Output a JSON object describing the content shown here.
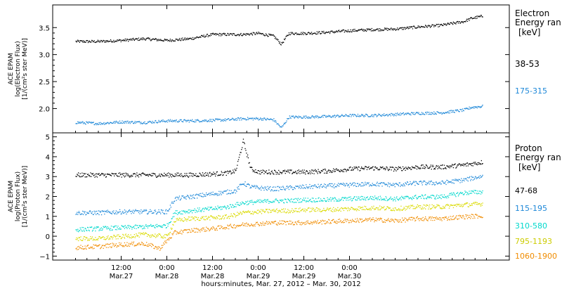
{
  "chart_data": [
    {
      "type": "scatter",
      "panel": "electron",
      "ylabel_lines": [
        "ACE EPAM",
        "log(Electron Flux)",
        "[1/(cm²s ster MeV)]"
      ],
      "ylim": [
        1.55,
        3.92
      ],
      "yticks": [
        2.0,
        2.5,
        3.0,
        3.5
      ],
      "ytick_labels": [
        "2.0",
        "2.5",
        "3.0",
        "3.5"
      ],
      "legend_title": "Electron",
      "legend_subtitle": "Energy ran",
      "legend_units": "[keV]",
      "series": [
        {
          "name": "38-53",
          "color": "#000000",
          "x": [
            0,
            6,
            12,
            18,
            24,
            30,
            36,
            40,
            44,
            48,
            52,
            54,
            56,
            60,
            66,
            72,
            78,
            84,
            90,
            96,
            102,
            104,
            107
          ],
          "y": [
            3.25,
            3.25,
            3.27,
            3.3,
            3.27,
            3.3,
            3.38,
            3.38,
            3.38,
            3.4,
            3.35,
            3.2,
            3.4,
            3.4,
            3.42,
            3.45,
            3.47,
            3.48,
            3.52,
            3.55,
            3.62,
            3.68,
            3.72
          ]
        },
        {
          "name": "175-315",
          "color": "#1e88d8",
          "x": [
            0,
            6,
            12,
            18,
            24,
            30,
            36,
            40,
            44,
            48,
            52,
            54,
            56,
            60,
            66,
            72,
            78,
            84,
            90,
            96,
            102,
            104,
            107
          ],
          "y": [
            1.75,
            1.73,
            1.76,
            1.75,
            1.78,
            1.78,
            1.79,
            1.8,
            1.82,
            1.82,
            1.8,
            1.65,
            1.85,
            1.85,
            1.86,
            1.88,
            1.88,
            1.9,
            1.92,
            1.93,
            1.98,
            2.03,
            2.05
          ]
        }
      ]
    },
    {
      "type": "scatter",
      "panel": "proton",
      "ylabel_lines": [
        "ACE EPAM",
        "log(Proton Flux)",
        "[1/(cm²s ster MeV)]"
      ],
      "ylim": [
        -1.2,
        5.2
      ],
      "yticks": [
        -1,
        0,
        1,
        2,
        3,
        4,
        5
      ],
      "ytick_labels": [
        "−1",
        "0",
        "1",
        "2",
        "3",
        "4",
        "5"
      ],
      "legend_title": "Proton",
      "legend_subtitle": "Energy ran",
      "legend_units": "[keV]",
      "series": [
        {
          "name": "47-68",
          "color": "#000000",
          "x": [
            0,
            6,
            12,
            18,
            24,
            30,
            36,
            40,
            42,
            44,
            46,
            48,
            52,
            56,
            60,
            66,
            72,
            78,
            84,
            90,
            96,
            102,
            107
          ],
          "y": [
            3.1,
            3.1,
            3.1,
            3.1,
            3.1,
            3.1,
            3.15,
            3.2,
            3.3,
            4.8,
            3.4,
            3.25,
            3.25,
            3.25,
            3.25,
            3.3,
            3.4,
            3.45,
            3.4,
            3.5,
            3.5,
            3.6,
            3.75
          ]
        },
        {
          "name": "115-195",
          "color": "#1e88d8",
          "x": [
            0,
            6,
            12,
            18,
            24,
            26,
            30,
            36,
            40,
            42,
            44,
            46,
            48,
            52,
            56,
            60,
            66,
            72,
            78,
            84,
            90,
            96,
            102,
            107
          ],
          "y": [
            1.2,
            1.2,
            1.25,
            1.25,
            1.25,
            1.9,
            2.0,
            2.15,
            2.25,
            2.3,
            2.7,
            2.5,
            2.45,
            2.4,
            2.45,
            2.5,
            2.55,
            2.6,
            2.65,
            2.6,
            2.7,
            2.7,
            2.85,
            3.05
          ]
        },
        {
          "name": "310-580",
          "color": "#00d8cc",
          "x": [
            0,
            6,
            12,
            18,
            24,
            26,
            30,
            36,
            40,
            44,
            48,
            52,
            56,
            60,
            66,
            72,
            78,
            84,
            90,
            96,
            102,
            107
          ],
          "y": [
            0.35,
            0.4,
            0.45,
            0.5,
            0.55,
            1.2,
            1.3,
            1.4,
            1.5,
            1.7,
            1.75,
            1.8,
            1.8,
            1.85,
            1.85,
            1.9,
            1.95,
            1.9,
            2.0,
            2.0,
            2.2,
            2.25
          ]
        },
        {
          "name": "795-1193",
          "color": "#dada00",
          "x": [
            0,
            6,
            12,
            18,
            24,
            26,
            30,
            36,
            40,
            44,
            48,
            52,
            56,
            60,
            66,
            72,
            78,
            84,
            90,
            96,
            102,
            107
          ],
          "y": [
            -0.1,
            -0.1,
            0.0,
            0.1,
            0.0,
            0.8,
            0.9,
            0.95,
            1.0,
            1.2,
            1.25,
            1.3,
            1.3,
            1.35,
            1.35,
            1.4,
            1.45,
            1.4,
            1.5,
            1.5,
            1.6,
            1.65
          ]
        },
        {
          "name": "1060-1900",
          "color": "#f08c00",
          "x": [
            0,
            6,
            12,
            18,
            22,
            24,
            26,
            30,
            36,
            40,
            44,
            48,
            52,
            56,
            60,
            66,
            72,
            78,
            84,
            90,
            96,
            102,
            107
          ],
          "y": [
            -0.55,
            -0.5,
            -0.4,
            -0.35,
            -0.6,
            -0.2,
            0.2,
            0.3,
            0.4,
            0.5,
            0.6,
            0.65,
            0.7,
            0.7,
            0.7,
            0.75,
            0.8,
            0.85,
            0.8,
            0.9,
            0.9,
            1.0,
            1.05
          ]
        }
      ]
    }
  ],
  "x_axis": {
    "range_hours": [
      -6,
      114
    ],
    "x_units_note": "hours after 0:00 Mar.27, 2012",
    "ticks": [
      {
        "hour": 12,
        "time": "12:00",
        "date": "Mar.27"
      },
      {
        "hour": 24,
        "time": "0:00",
        "date": "Mar.28"
      },
      {
        "hour": 36,
        "time": "12:00",
        "date": "Mar.28"
      },
      {
        "hour": 48,
        "time": "0:00",
        "date": "Mar.29"
      },
      {
        "hour": 60,
        "time": "12:00",
        "date": "Mar.29"
      },
      {
        "hour": 72,
        "time": "0:00",
        "date": "Mar.30"
      }
    ],
    "xlabel": "hours:minutes, Mar. 27, 2012 – Mar. 30, 2012"
  }
}
